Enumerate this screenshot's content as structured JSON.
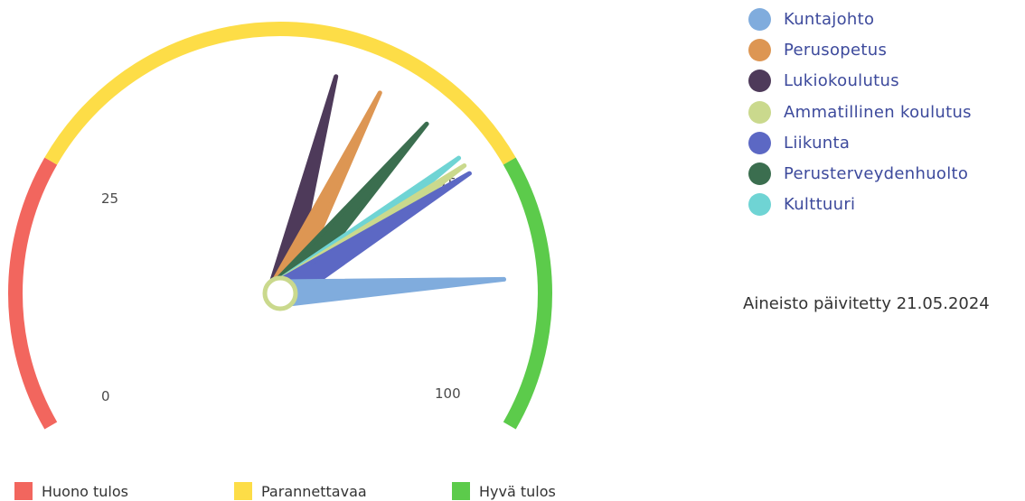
{
  "chart_data": {
    "type": "gauge",
    "scale": {
      "min": 0,
      "max": 100,
      "ticks": [
        0,
        25,
        75,
        100
      ]
    },
    "bands": [
      {
        "name": "Huono tulos",
        "from": 0,
        "to": 25,
        "color": "#f2665e"
      },
      {
        "name": "Parannettavaa",
        "from": 25,
        "to": 75,
        "color": "#fddd47"
      },
      {
        "name": "Hyvä tulos",
        "from": 75,
        "to": 100,
        "color": "#5ccb4b"
      }
    ],
    "series": [
      {
        "name": "Kuntajohto",
        "value": 86,
        "color": "#80acdd"
      },
      {
        "name": "Perusopetus",
        "value": 61,
        "color": "#dd9653"
      },
      {
        "name": "Lukiokoulutus",
        "value": 56,
        "color": "#4e3a5a"
      },
      {
        "name": "Ammatillinen koulutus",
        "value": 73,
        "color": "#cad98d"
      },
      {
        "name": "Liikunta",
        "value": 74,
        "color": "#5c68c4"
      },
      {
        "name": "Perusterveydenhuolto",
        "value": 67,
        "color": "#3b6e4f"
      },
      {
        "name": "Kulttuuri",
        "value": 72,
        "color": "#6fd4d4"
      }
    ],
    "updated_text": "Aineisto päivitetty 21.05.2024"
  }
}
